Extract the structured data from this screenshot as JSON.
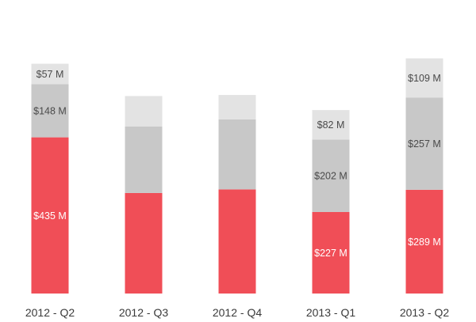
{
  "chart_data": {
    "type": "bar",
    "stacked": true,
    "categories": [
      "2012 - Q2",
      "2012 - Q3",
      "2012 - Q4",
      "2013 - Q1",
      "2013 - Q2"
    ],
    "series": [
      {
        "color": "#f04e57",
        "values": [
          435,
          280,
          290,
          227,
          289
        ],
        "labels": [
          "$435 M",
          "",
          "",
          "$227 M",
          "$289 M"
        ]
      },
      {
        "color": "#c8c8c8",
        "values": [
          148,
          185,
          195,
          202,
          257
        ],
        "labels": [
          "$148 M",
          "",
          "",
          "$202 M",
          "$257 M"
        ]
      },
      {
        "color": "#e3e3e3",
        "values": [
          57,
          85,
          68,
          82,
          109
        ],
        "labels": [
          "$57 M",
          "",
          "",
          "$82 M",
          "$109 M"
        ]
      }
    ],
    "grid": false,
    "legend": "none"
  }
}
